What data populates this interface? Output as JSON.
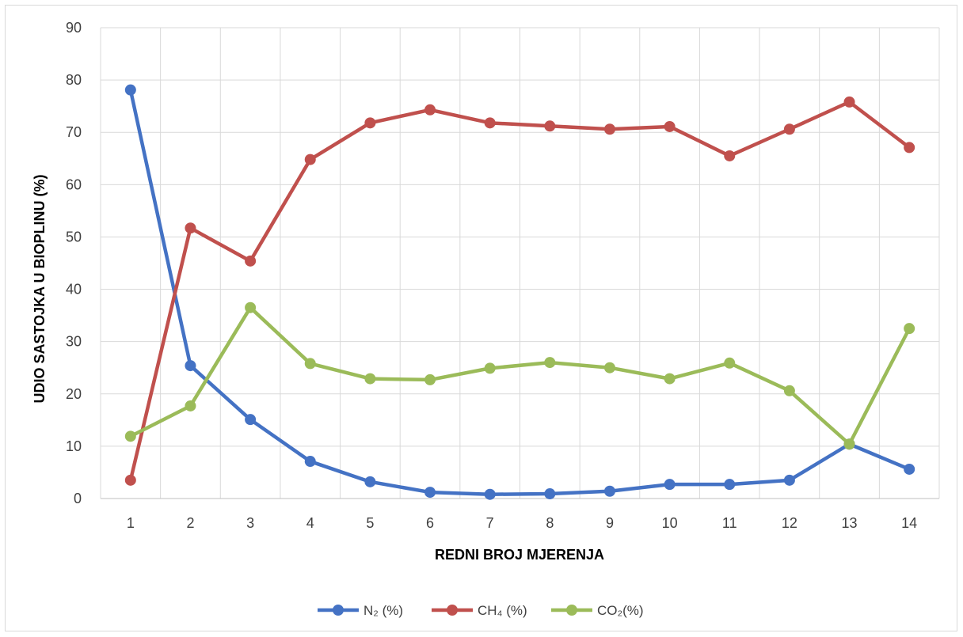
{
  "chart_data": {
    "type": "line",
    "title": "",
    "xlabel": "REDNI BROJ MJERENJA",
    "ylabel": "UDIO SASTOJKA U BIOPLINU (%)",
    "x": [
      1,
      2,
      3,
      4,
      5,
      6,
      7,
      8,
      9,
      10,
      11,
      12,
      13,
      14
    ],
    "ylim": [
      0,
      90
    ],
    "yticks": [
      0,
      10,
      20,
      30,
      40,
      50,
      60,
      70,
      80,
      90
    ],
    "grid": true,
    "legend_position": "bottom",
    "series": [
      {
        "name": "N₂ (%)",
        "color": "#4472c4",
        "values": [
          78.1,
          25.4,
          15.1,
          7.1,
          3.2,
          1.2,
          0.8,
          0.9,
          1.4,
          2.7,
          2.7,
          3.5,
          10.4,
          5.6
        ]
      },
      {
        "name": "CH₄ (%)",
        "color": "#c0504d",
        "values": [
          3.5,
          51.7,
          45.4,
          64.8,
          71.8,
          74.3,
          71.8,
          71.2,
          70.6,
          71.1,
          65.5,
          70.6,
          75.8,
          67.1
        ]
      },
      {
        "name": "CO₂(%)",
        "color": "#9bbb59",
        "values": [
          11.9,
          17.7,
          36.5,
          25.8,
          22.9,
          22.7,
          24.9,
          26.0,
          25.0,
          22.9,
          25.9,
          20.6,
          10.4,
          32.5
        ]
      }
    ]
  }
}
